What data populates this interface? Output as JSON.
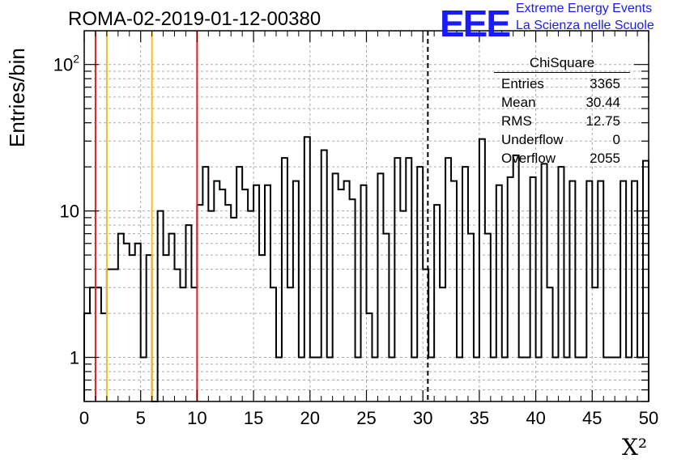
{
  "title": "ROMA-02-2019-01-12-00380",
  "logo": {
    "text": "EEE",
    "line1": "Extreme Energy Events",
    "line2": "La Scienza nelle Scuole",
    "color": "#1a1aff"
  },
  "stats": {
    "title": "ChiSquare",
    "rows": [
      {
        "label": "Entries",
        "value": "3365"
      },
      {
        "label": "Mean",
        "value": "30.44"
      },
      {
        "label": "RMS",
        "value": "12.75"
      },
      {
        "label": "Underflow",
        "value": "0"
      },
      {
        "label": "Overflow",
        "value": "2055"
      }
    ]
  },
  "chart_data": {
    "type": "histogram",
    "ylabel": "Entries/bin",
    "xlabel": "X²",
    "xlim": [
      0,
      50
    ],
    "ylim": [
      0.5,
      170
    ],
    "yscale": "log",
    "grid": true,
    "bin_width": 0.5,
    "x_ticks": [
      0,
      5,
      10,
      15,
      20,
      25,
      30,
      35,
      40,
      45,
      50
    ],
    "y_tick_labels": [
      {
        "v": 1,
        "label": "1"
      },
      {
        "v": 10,
        "label": "10"
      },
      {
        "v": 100,
        "label": "10²"
      }
    ],
    "values": [
      2,
      3,
      3,
      2,
      4,
      4,
      7,
      6,
      5,
      6,
      1,
      5,
      0,
      10,
      5,
      7,
      4,
      3,
      8,
      3,
      11,
      20,
      10,
      16,
      14,
      11,
      9,
      20,
      14,
      10,
      15,
      5,
      15,
      3,
      1,
      23,
      3,
      16,
      1,
      32,
      1,
      1,
      26,
      1,
      18,
      14,
      16,
      12,
      1,
      15,
      2,
      1,
      18,
      7,
      1,
      23,
      10,
      23,
      1,
      20,
      4,
      1,
      11,
      3,
      23,
      16,
      1,
      20,
      7,
      1,
      31,
      7,
      1,
      15,
      1,
      17,
      24,
      1,
      1,
      17,
      1,
      21,
      3,
      1,
      20,
      1,
      16,
      1,
      1,
      16,
      3,
      16,
      1,
      1,
      1,
      16,
      1,
      16,
      1,
      22
    ],
    "vlines": [
      {
        "x": 1,
        "color": "#dd2222",
        "style": "solid"
      },
      {
        "x": 2,
        "color": "#f0c020",
        "style": "solid"
      },
      {
        "x": 6,
        "color": "#f0c020",
        "style": "solid"
      },
      {
        "x": 10,
        "color": "#dd2222",
        "style": "solid"
      },
      {
        "x": 30.44,
        "color": "#000000",
        "style": "dashed"
      }
    ]
  }
}
